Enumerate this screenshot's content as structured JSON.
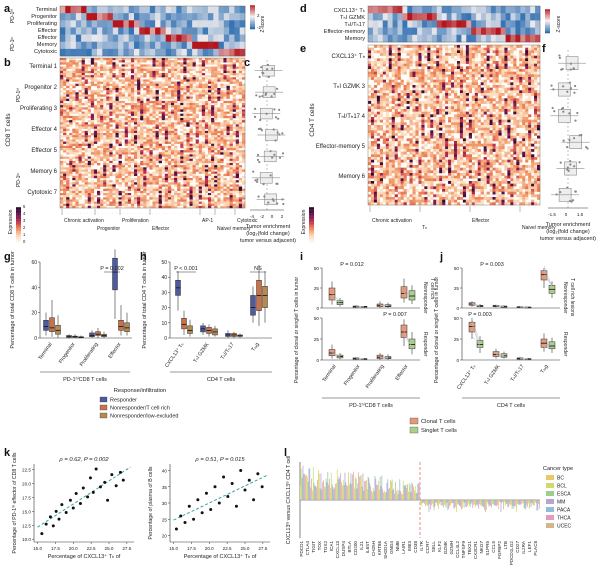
{
  "panel_letters": {
    "a": "a",
    "b": "b",
    "c": "c",
    "d": "d",
    "e": "e",
    "f": "f",
    "g": "g",
    "h": "h",
    "i": "i",
    "j": "j",
    "k": "k",
    "l": "l"
  },
  "a": {
    "rows": [
      "Terminal",
      "Progenitor",
      "Proliferating",
      "Effector",
      "Effector",
      "Memory",
      "Cytotoxic"
    ],
    "group_hi": "PD-1ʰⁱ",
    "group_lo": "PD-1ˡᵒ"
  },
  "zscore_legend": {
    "title": "Z-score",
    "ticks": [
      "-2",
      "0",
      "2"
    ]
  },
  "b": {
    "rows": [
      "Terminal 1",
      "Progenitor 2",
      "Proliferating 3",
      "Effector 4",
      "Effector 5",
      "Memory 6",
      "Cytotoxic 7"
    ],
    "axis_title": "CD8 T cells",
    "group_hi": "PD-1ʰⁱ",
    "group_lo": "PD-1ˡᵒ",
    "categories": [
      "Chronic activation",
      "Progenitor",
      "Proliferation",
      "Effector",
      "AP-1",
      "Naive/ memory",
      "Cytotoxic"
    ]
  },
  "expr_legend": {
    "title": "Expression",
    "ticks": [
      "0",
      "1",
      "2",
      "3",
      "4",
      "5"
    ]
  },
  "c": {
    "xlabel": "Tumor enrichment (log₂(fold change) tumor versus adjacent)",
    "ticks": [
      "-4",
      "-2",
      "0",
      "2"
    ]
  },
  "d": {
    "rows": [
      "CXCL13⁺ Tₕ",
      "TₕI GZMK",
      "TₕI/Tₕ17",
      "Effector-memory",
      "Memory"
    ]
  },
  "e": {
    "rows": [
      "CXCL13⁺ Tₕ",
      "TₕI GZMK 3",
      "TₕI/Tₕ17 4",
      "Effector-memory 5",
      "Memory 6"
    ],
    "axis_title": "CD4 T cells",
    "categories": [
      "Chronic activation",
      "Tₕ",
      "Effector",
      "Naive/ memory"
    ]
  },
  "f": {
    "xlabel": "Tumor enrichment (log₂(fold change) tumor versus adjacent)",
    "ticks": [
      "-1.5",
      "0",
      "1.5"
    ]
  },
  "g": {
    "ylabel": "Percentage of total CD8 T cells in tumor",
    "yticks": [
      "0",
      "20",
      "40",
      "60"
    ],
    "categories": [
      "Terminal",
      "Progenitor",
      "Proliferating",
      "Effector"
    ],
    "xtitle": "PD-1ʰⁱCD8 T cells",
    "pvalue": "P = 0.002"
  },
  "h": {
    "ylabel": "Percentage of total CD4 T cells in tumor",
    "yticks": [
      "0",
      "10",
      "20",
      "30",
      "40",
      "50"
    ],
    "categories": [
      "CXCL13⁺ Tₕ",
      "TₕI GZMK",
      "TₕI/Tₕ17",
      "Tᵣₑg"
    ],
    "xtitle": "CD4 T cells",
    "pvalue": "P < 0.001",
    "ns": "NS"
  },
  "i": {
    "ylabel": "Percentage of clonal or singlet T cells in tumor",
    "categories": [
      "Terminal",
      "Progenitor",
      "Proliferating",
      "Effector"
    ],
    "xtitle": "PD-1ʰⁱCD8 T cells",
    "p1": "P = 0.012",
    "p2": "P = 0.007",
    "side_top": "Nonresponder",
    "side_top2": "T cell rich",
    "side_bot": "Responder"
  },
  "j": {
    "ylabel": "Percentage of clonal or singlet T cells in tumor",
    "categories": [
      "CXCL13⁺ Tₕ",
      "TₕI GZMK",
      "TₕI/Tₕ17",
      "Tᵣₑg"
    ],
    "xtitle": "CD4 T cells",
    "p1": "P = 0.003",
    "p2": "P = 0.003",
    "side_top": "Nonresponder",
    "side_top2": "T cell rich lesions",
    "side_bot": "Responder"
  },
  "response_legend": {
    "title": "Response/infiltration",
    "items": [
      {
        "label": "Responder",
        "color": "#4e5b9e"
      },
      {
        "label": "Nonresponder/T cell rich",
        "color": "#c9724a"
      },
      {
        "label": "Nonresponder/low-excluded",
        "color": "#b48a4e"
      }
    ]
  },
  "clonal_legend": {
    "items": [
      {
        "label": "Clonal T cells",
        "color": "#e49a7a"
      },
      {
        "label": "Singlet T cells",
        "color": "#a9cf8a"
      }
    ]
  },
  "k": {
    "left": {
      "stat": "ρ = 0.62, P = 0.002",
      "ylabel": "Percentage of PD-1ʰⁱ effector of CD8 T cells",
      "xlabel": "Percentage of CXCL13⁺ Tₕ of",
      "xticks": [
        "15.0",
        "17.5",
        "20.0",
        "22.5",
        "25.0",
        "27.5"
      ],
      "yticks": [
        "10.0",
        "12.5",
        "15.0",
        "17.5",
        "20.0",
        "22.5"
      ],
      "points": [
        [
          15.6,
          11.0
        ],
        [
          16.2,
          12.7
        ],
        [
          16.8,
          14.0
        ],
        [
          17.2,
          12.4
        ],
        [
          17.6,
          15.0
        ],
        [
          18.0,
          13.6
        ],
        [
          18.4,
          16.2
        ],
        [
          19.0,
          14.8
        ],
        [
          19.6,
          17.0
        ],
        [
          20.0,
          15.6
        ],
        [
          20.4,
          18.2
        ],
        [
          21.0,
          16.4
        ],
        [
          21.4,
          19.2
        ],
        [
          22.0,
          17.6
        ],
        [
          22.4,
          21.0
        ],
        [
          22.8,
          18.4
        ],
        [
          23.2,
          22.6
        ],
        [
          23.8,
          19.4
        ],
        [
          24.4,
          20.2
        ],
        [
          24.8,
          17.0
        ],
        [
          25.4,
          21.6
        ],
        [
          26.0,
          19.6
        ],
        [
          26.6,
          22.0
        ],
        [
          27.0,
          20.6
        ]
      ],
      "xlim": [
        14.5,
        28.5
      ],
      "ylim": [
        9.5,
        23.5
      ]
    },
    "right": {
      "stat": "ρ = 0.51, P = 0.015",
      "ylabel": "Percentage of plasma of B cells",
      "xlabel": "Percentage of CXCL13⁺ Tₕ of",
      "xticks": [
        "15.0",
        "17.5",
        "20.0",
        "22.5",
        "25.0",
        "27.5"
      ],
      "yticks": [
        "20",
        "25",
        "30",
        "35",
        "40"
      ],
      "points": [
        [
          15.4,
          22.0
        ],
        [
          16.0,
          26.0
        ],
        [
          16.6,
          24.0
        ],
        [
          17.2,
          29.0
        ],
        [
          17.8,
          25.0
        ],
        [
          18.4,
          31.0
        ],
        [
          19.0,
          27.0
        ],
        [
          19.6,
          33.0
        ],
        [
          20.2,
          28.0
        ],
        [
          20.8,
          35.0
        ],
        [
          21.4,
          30.0
        ],
        [
          22.0,
          38.0
        ],
        [
          22.6,
          32.0
        ],
        [
          23.2,
          36.0
        ],
        [
          23.8,
          29.0
        ],
        [
          24.4,
          40.0
        ],
        [
          25.0,
          34.0
        ],
        [
          25.6,
          37.0
        ],
        [
          26.2,
          31.0
        ],
        [
          26.8,
          39.0
        ],
        [
          27.4,
          35.0
        ]
      ],
      "xlim": [
        14.5,
        28.5
      ],
      "ylim": [
        18,
        42
      ]
    }
  },
  "l": {
    "ylabel": "CXCL13ʰⁱ versus CXCL13ˡᵒ CD4 T cell",
    "genes": [
      "PDCD1",
      "CTLA4",
      "TIGIT",
      "TOX",
      "TOX2",
      "ICA1",
      "CXCL13",
      "DUSP4",
      "BTLA",
      "CD200",
      "IL21",
      "IL6ST",
      "CH25H",
      "KRT86",
      "SH2D1A",
      "GNG4",
      "NMB",
      "LAIR1",
      "EBI3",
      "CD38",
      "IL7R",
      "CCR7",
      "SELL",
      "KLF2",
      "GZMK",
      "GZMH",
      "CCL4L2",
      "TNFSF9",
      "TBX21",
      "CX3CR1",
      "NKG7",
      "S1PR5",
      "CCL5",
      "FGFBP2",
      "LTB",
      "PDCD1LG2",
      "CD27",
      "IL2RA",
      "LEF1",
      "PLAC8"
    ],
    "legend_title": "Cancer type",
    "cancer_types": [
      {
        "label": "BC",
        "color": "#e7c86a"
      },
      {
        "label": "BCL",
        "color": "#cfd96e"
      },
      {
        "label": "ESCA",
        "color": "#9ecf8a"
      },
      {
        "label": "MM",
        "color": "#b7a3d6"
      },
      {
        "label": "PACA",
        "color": "#8fbfd8"
      },
      {
        "label": "THCA",
        "color": "#e49bc2"
      },
      {
        "label": "UCEC",
        "color": "#d8b48a"
      }
    ]
  },
  "colors": {
    "heat_hi": "#b4161c",
    "heat_mid": "#f5f0f0",
    "heat_lo": "#2b6cb0",
    "expr_lo": "#fff7ef",
    "expr_hi": "#3b0a1a"
  }
}
